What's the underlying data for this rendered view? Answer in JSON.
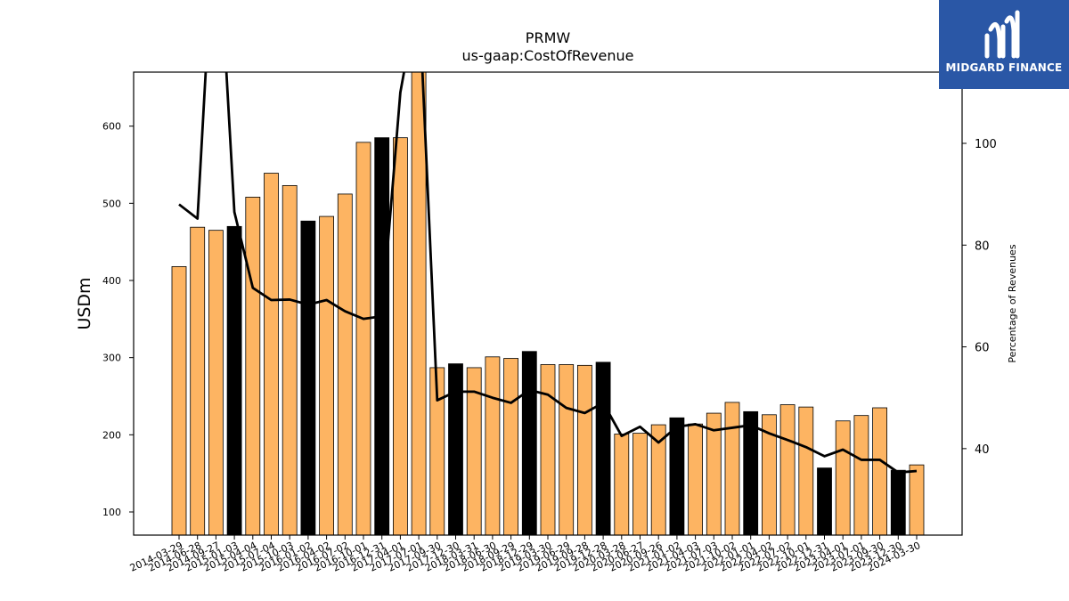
{
  "logo": {
    "text": "MIDGARD FINANCE",
    "background": "#2a57a6"
  },
  "chart_data": {
    "type": "bar",
    "title": "PRMW",
    "subtitle": "us-gaap:CostOfRevenue",
    "ylabel": "USDm",
    "y2label": "Percentage of Revenues",
    "ylim": [
      70,
      670
    ],
    "y2lim": [
      23,
      114
    ],
    "yticks": [
      100,
      200,
      300,
      400,
      500,
      600
    ],
    "y2ticks": [
      40,
      60,
      80,
      100
    ],
    "bar_color": "#fdb462",
    "highlight_color": "#000000",
    "line_color": "#000000",
    "categories": [
      "2014-03-29",
      "2014-06-28",
      "2014-09-27",
      "2015-01-03",
      "2015-04-04",
      "2015-07-04",
      "2015-10-03",
      "2016-01-02",
      "2016-04-02",
      "2016-07-02",
      "2016-10-01",
      "2016-12-31",
      "2017-04-01",
      "2017-07-01",
      "2017-09-30",
      "2017-12-30",
      "2018-03-31",
      "2018-06-30",
      "2018-09-29",
      "2018-12-29",
      "2019-03-30",
      "2019-06-29",
      "2019-09-28",
      "2019-12-28",
      "2020-03-28",
      "2020-06-27",
      "2020-09-26",
      "2021-01-02",
      "2021-04-03",
      "2021-07-03",
      "2021-10-02",
      "2022-01-01",
      "2022-04-02",
      "2022-07-02",
      "2022-10-01",
      "2022-12-31",
      "2023-04-01",
      "2023-07-01",
      "2023-09-30",
      "2023-12-30",
      "2024-03-30"
    ],
    "series": [
      {
        "kind": "bar",
        "values": [
          418,
          469,
          465,
          470,
          508,
          539,
          523,
          477,
          483,
          512,
          579,
          585,
          585,
          680,
          287,
          292,
          287,
          301,
          299,
          308,
          291,
          291,
          290,
          294,
          201,
          202,
          213,
          222,
          214,
          228,
          242,
          230,
          226,
          239,
          236,
          157,
          218,
          225,
          235,
          154,
          161
        ],
        "highlight": [
          false,
          false,
          false,
          true,
          false,
          false,
          false,
          true,
          false,
          false,
          false,
          true,
          false,
          false,
          false,
          true,
          false,
          false,
          false,
          true,
          false,
          false,
          false,
          true,
          false,
          false,
          false,
          true,
          false,
          false,
          false,
          true,
          false,
          false,
          false,
          true,
          false,
          false,
          false,
          true,
          false
        ]
      },
      {
        "kind": "line",
        "axis": "right",
        "values": [
          88.0,
          85.2,
          150,
          86.5,
          71.6,
          69.2,
          69.3,
          68.3,
          69.2,
          67.0,
          65.5,
          66.0,
          110.0,
          130,
          49.5,
          51.2,
          51.2,
          50.0,
          49.0,
          51.5,
          50.6,
          48.0,
          47.0,
          49.0,
          42.5,
          44.3,
          41.2,
          44.3,
          44.8,
          43.6,
          44.1,
          44.6,
          43.0,
          41.7,
          40.3,
          38.5,
          39.8,
          37.8,
          37.8,
          35.3,
          35.6
        ]
      }
    ]
  }
}
